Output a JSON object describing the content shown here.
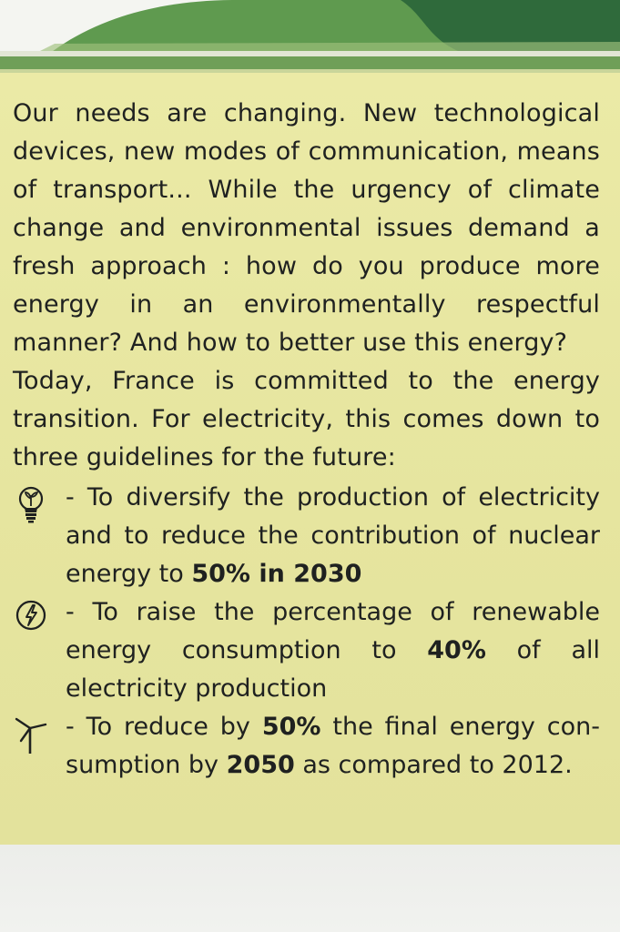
{
  "colors": {
    "panel": "#e8e7a2",
    "text": "#1f2120",
    "green_dark": "#2e6b3f",
    "green_light": "#8ab86a"
  },
  "intro": "Our needs are changing. New technological devices, new modes of communication, means of transport... While the urgency of climate change and environmental issues demand a fresh approach : how do you produce more energy in an environmentally respectful manner? And how to better use this energy?",
  "today": "Today, France is committed to the energy transition. For electricity, this comes down to three guidelines for the future:",
  "guidelines": [
    {
      "icon": "lightbulb-sprout-icon",
      "before": "- To diversify the production of electricity and to reduce the contribution of nuclear energy to ",
      "bold1": "50% in 2030",
      "middle": "",
      "bold2": "",
      "after": ""
    },
    {
      "icon": "lightning-circle-icon",
      "before": "- To raise the percentage of renewable energy consumption to ",
      "bold1": "40%",
      "middle": " of all electricity production",
      "bold2": "",
      "after": ""
    },
    {
      "icon": "wind-turbine-icon",
      "before": "- To reduce by ",
      "bold1": "50%",
      "middle": " the final energy con-sumption by ",
      "bold2": "2050",
      "after": " as compared to 2012."
    }
  ]
}
